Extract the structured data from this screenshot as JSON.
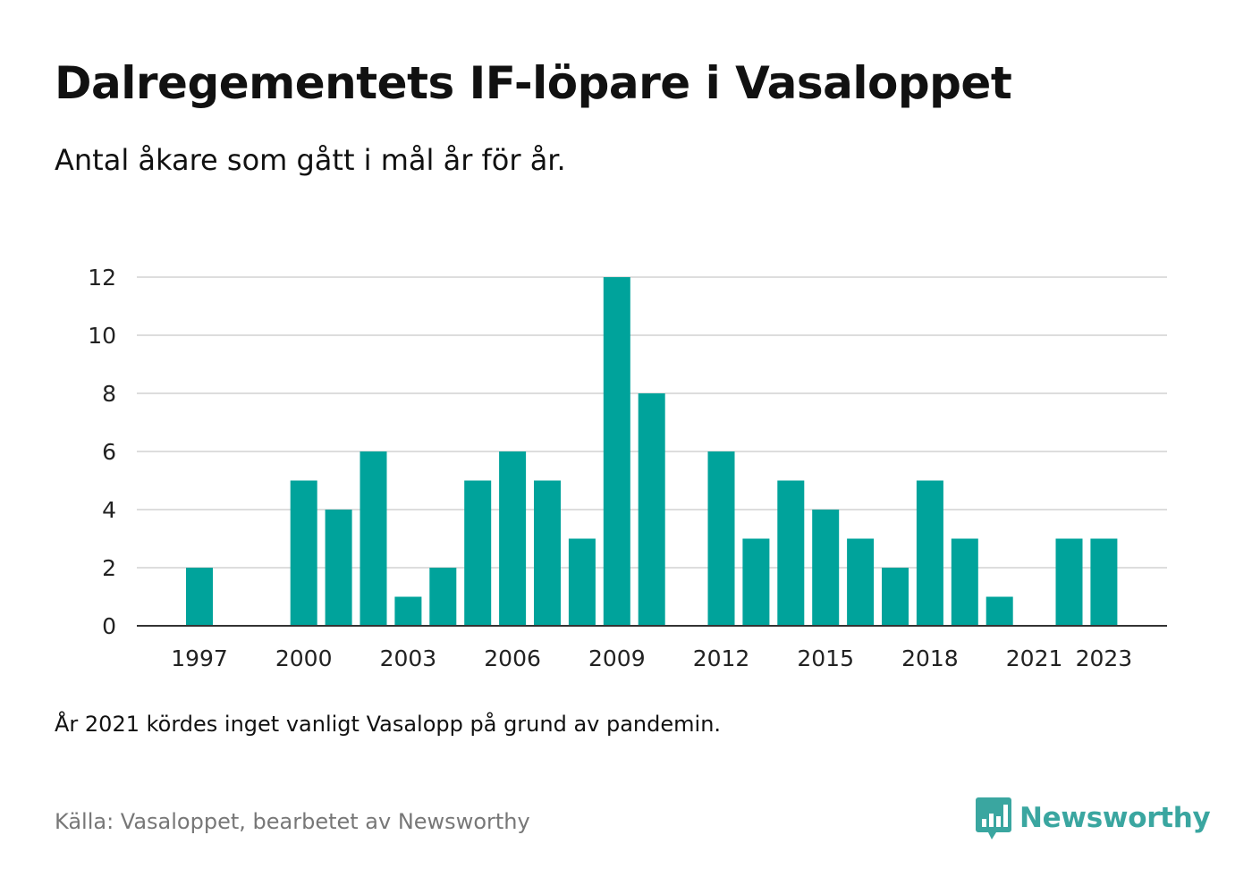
{
  "title": "Dalregementets IF-löpare i Vasaloppet",
  "subtitle": "Antal åkare som gått i mål år för år.",
  "note": "År 2021 kördes inget vanligt Vasalopp på grund av pandemin.",
  "source": "Källa: Vasaloppet, bearbetet av Newsworthy",
  "brand": {
    "name": "Newsworthy",
    "icon": "newsworthy-logo-icon",
    "color": "#3aa6a0"
  },
  "colors": {
    "bar": "#00a39b",
    "grid": "#dddddd",
    "axis": "#333333"
  },
  "chart_data": {
    "type": "bar",
    "title": "Dalregementets IF-löpare i Vasaloppet",
    "subtitle": "Antal åkare som gått i mål år för år.",
    "xlabel": "",
    "ylabel": "",
    "ylim": [
      0,
      12
    ],
    "yticks": [
      0,
      2,
      4,
      6,
      8,
      10,
      12
    ],
    "xtick_labels": [
      "1997",
      "2000",
      "2003",
      "2006",
      "2009",
      "2012",
      "2015",
      "2018",
      "2021",
      "2023"
    ],
    "grid": true,
    "categories": [
      "1997",
      "1998",
      "1999",
      "2000",
      "2001",
      "2002",
      "2003",
      "2004",
      "2005",
      "2006",
      "2007",
      "2008",
      "2009",
      "2010",
      "2011",
      "2012",
      "2013",
      "2014",
      "2015",
      "2016",
      "2017",
      "2018",
      "2019",
      "2020",
      "2021",
      "2022",
      "2023"
    ],
    "values": [
      2,
      0,
      0,
      5,
      4,
      6,
      1,
      2,
      5,
      6,
      5,
      3,
      12,
      8,
      0,
      6,
      3,
      5,
      4,
      3,
      2,
      5,
      3,
      1,
      0,
      3,
      3
    ]
  }
}
